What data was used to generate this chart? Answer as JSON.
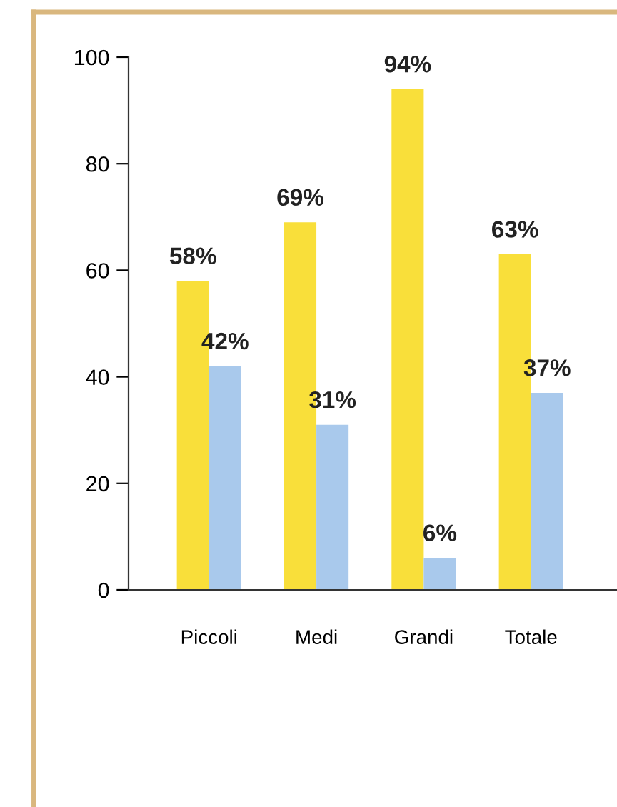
{
  "chart_data": {
    "type": "bar",
    "categories": [
      "Piccoli",
      "Medi",
      "Grandi",
      "Totale"
    ],
    "series": [
      {
        "color": "#f9df3a",
        "values": [
          58,
          69,
          94,
          63
        ],
        "value_labels": [
          "58%",
          "69%",
          "94%",
          "63%"
        ]
      },
      {
        "color": "#a9c9ec",
        "values": [
          42,
          31,
          6,
          37
        ],
        "value_labels": [
          "42%",
          "31%",
          "6%",
          "37%"
        ]
      }
    ],
    "ylim": [
      0,
      100
    ],
    "yticks": [
      0,
      20,
      40,
      60,
      80,
      100
    ],
    "grid": false,
    "legend": false
  }
}
